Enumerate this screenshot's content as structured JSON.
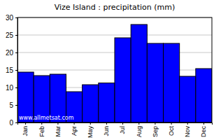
{
  "chart_data": {
    "type": "bar",
    "title": "Vize Island : precipitation (mm)",
    "categories": [
      "Jan",
      "Feb",
      "Mar",
      "Apr",
      "May",
      "Jun",
      "Jul",
      "Aug",
      "Sep",
      "Oct",
      "Nov",
      "Dec"
    ],
    "values": [
      14.4,
      13.4,
      13.8,
      8.8,
      10.8,
      11.3,
      24.2,
      28,
      22.6,
      22.6,
      13.2,
      15.4
    ],
    "color": "#0000ff",
    "ylim": [
      0,
      30
    ],
    "yticks": [
      0,
      5,
      10,
      15,
      20,
      25,
      30
    ],
    "grid": true,
    "annotations": [
      "www.allmetsat.com"
    ]
  }
}
